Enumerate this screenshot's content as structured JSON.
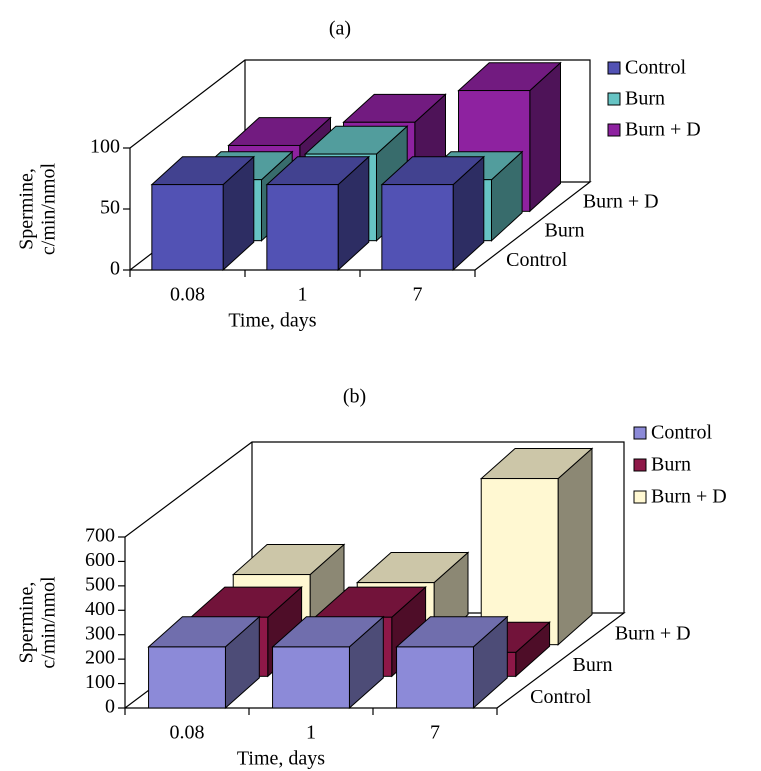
{
  "chart_data": [
    {
      "type": "bar3d",
      "title": "(a)",
      "xlabel": "Time, days",
      "ylabel": [
        "Spermine,",
        "c/min/nmol"
      ],
      "categories": [
        "0.08",
        "1",
        "7"
      ],
      "series": [
        {
          "name": "Control",
          "color": "#5252b4",
          "values": [
            70,
            70,
            70
          ]
        },
        {
          "name": "Burn",
          "color": "#66c4c4",
          "values": [
            50,
            71,
            50
          ]
        },
        {
          "name": "Burn + D",
          "color": "#8e22a0",
          "values": [
            54,
            73,
            99
          ]
        }
      ],
      "ylim": [
        0,
        100
      ],
      "yticks": [
        0,
        50,
        100
      ],
      "legend": "right"
    },
    {
      "type": "bar3d",
      "title": "(b)",
      "xlabel": "Time, days",
      "ylabel": [
        "Spermine,",
        "c/min/nmol"
      ],
      "categories": [
        "0.08",
        "1",
        "7"
      ],
      "series": [
        {
          "name": "Control",
          "color": "#8c8ad8",
          "values": [
            250,
            250,
            250
          ]
        },
        {
          "name": "Burn",
          "color": "#8e1848",
          "values": [
            242,
            242,
            98
          ]
        },
        {
          "name": "Burn + D",
          "color": "#fff8d2",
          "values": [
            287,
            254,
            680
          ]
        }
      ],
      "ylim": [
        0,
        700
      ],
      "yticks": [
        0,
        100,
        200,
        300,
        400,
        500,
        600,
        700
      ],
      "legend": "right"
    }
  ]
}
